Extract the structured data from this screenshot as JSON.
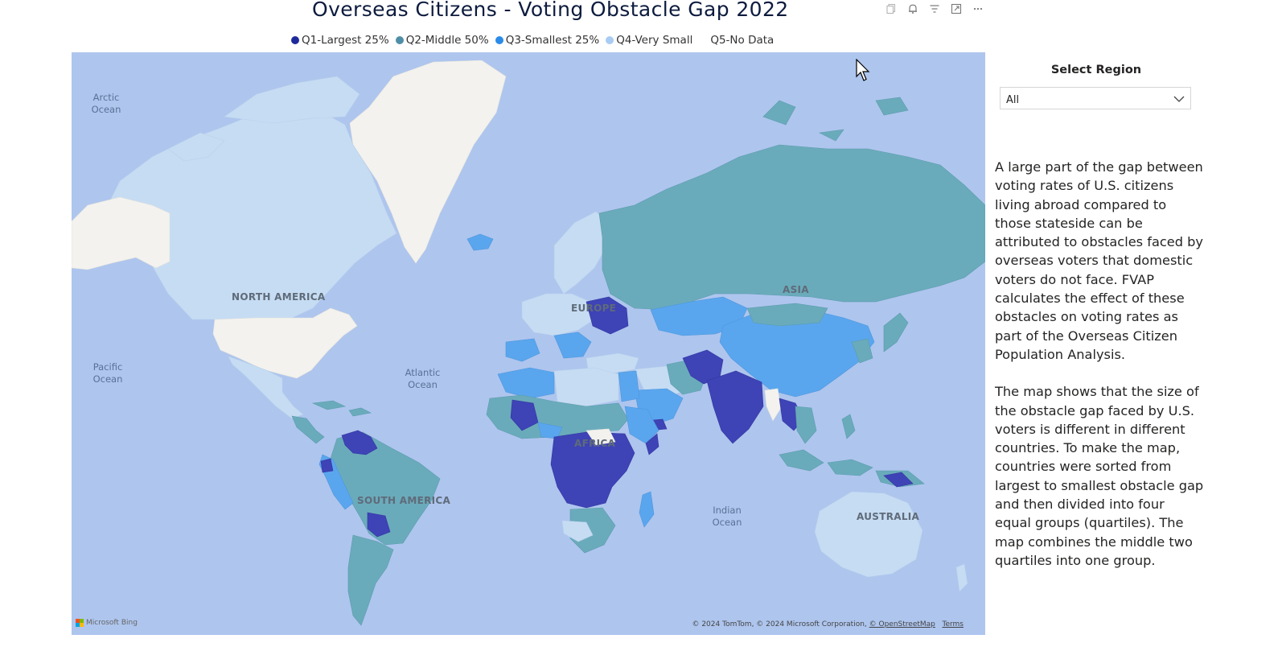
{
  "title": "Overseas Citizens - Voting Obstacle Gap 2022",
  "toolbar": {
    "icons": [
      "copy-icon",
      "bell-icon",
      "filter-icon",
      "focus-mode-icon",
      "more-options-icon"
    ]
  },
  "legend": {
    "items": [
      {
        "label": "Q1-Largest 25%",
        "color": "#1e2a9c"
      },
      {
        "label": "Q2-Middle 50%",
        "color": "#4f8ea7"
      },
      {
        "label": "Q3-Smallest 25%",
        "color": "#2b8be8"
      },
      {
        "label": "Q4-Very Small",
        "color": "#a9ccf3"
      },
      {
        "label": "Q5-No Data",
        "color": ""
      }
    ]
  },
  "map": {
    "ocean_labels": {
      "arctic": "Arctic\nOcean",
      "pacific": "Pacific\nOcean",
      "atlantic": "Atlantic\nOcean",
      "indian": "Indian\nOcean"
    },
    "continent_labels": {
      "north_america": "NORTH AMERICA",
      "south_america": "SOUTH AMERICA",
      "europe": "EUROPE",
      "africa": "AFRICA",
      "asia": "ASIA",
      "australia": "AUSTRALIA"
    },
    "bing": "Microsoft Bing",
    "attribution": {
      "text": "© 2024 TomTom, © 2024 Microsoft Corporation, ",
      "osm_link": "© OpenStreetMap",
      "terms_link": "Terms"
    },
    "colors": {
      "ocean": "#aec5ee",
      "q1": "#3e43b6",
      "q1_dark": "#2b36b0",
      "q2": "#6aabbb",
      "q3": "#5aa6ee",
      "q4": "#c6dcf3",
      "no_data": "#f3f2ee"
    }
  },
  "slicer": {
    "title": "Select Region",
    "value": "All"
  },
  "description": {
    "p1": "A large part of the gap between voting rates of U.S. citizens living abroad compared to those stateside can be attributed to obstacles faced by overseas voters that domestic voters do not face. FVAP calculates the effect of these obstacles on voting rates as part of the Overseas Citizen Population Analysis.",
    "p2": "The map shows that the size of the obstacle gap faced by U.S. voters is different in different countries. To make the map, countries were sorted from largest to smallest obstacle gap and then divided into four equal groups (quartiles). The map combines the middle two quartiles into one group."
  }
}
